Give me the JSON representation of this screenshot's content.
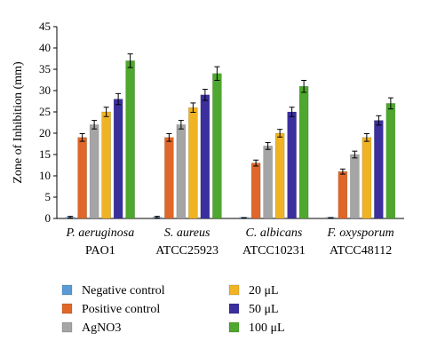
{
  "chart_data": {
    "type": "bar",
    "ylabel": "Zone of Inhibition (mm)",
    "ylim": [
      0,
      45
    ],
    "yticks": [
      0,
      5,
      10,
      15,
      20,
      25,
      30,
      35,
      40,
      45
    ],
    "grid": false,
    "legend_position": "bottom",
    "categories": [
      {
        "line1": "P. aeruginosa",
        "line2": "PAO1"
      },
      {
        "line1": "S. aureus",
        "line2": "ATCC25923"
      },
      {
        "line1": "C. albicans",
        "line2": "ATCC10231"
      },
      {
        "line1": "F. oxysporum",
        "line2": "ATCC48112"
      }
    ],
    "series": [
      {
        "name": "Negative control",
        "color": "#5b9bd5",
        "values": [
          0.3,
          0.3,
          0.1,
          0.1
        ],
        "errors": [
          0.2,
          0.2,
          0.1,
          0.1
        ]
      },
      {
        "name": "Positive control",
        "color": "#e0672a",
        "values": [
          19,
          19,
          13,
          11
        ],
        "errors": [
          0.9,
          0.9,
          0.7,
          0.6
        ]
      },
      {
        "name": "AgNO3",
        "color": "#a5a5a5",
        "values": [
          22,
          22,
          17,
          15
        ],
        "errors": [
          1.0,
          1.0,
          0.8,
          0.8
        ]
      },
      {
        "name": "20 μL",
        "color": "#f0b323",
        "values": [
          25,
          26,
          20,
          19
        ],
        "errors": [
          1.1,
          1.1,
          0.9,
          0.9
        ]
      },
      {
        "name": "50 μL",
        "color": "#3b2f9e",
        "values": [
          28,
          29,
          25,
          23
        ],
        "errors": [
          1.3,
          1.3,
          1.1,
          1.1
        ]
      },
      {
        "name": "100 μL",
        "color": "#4ea72e",
        "values": [
          37,
          34,
          31,
          27
        ],
        "errors": [
          1.6,
          1.6,
          1.4,
          1.3
        ]
      }
    ]
  }
}
